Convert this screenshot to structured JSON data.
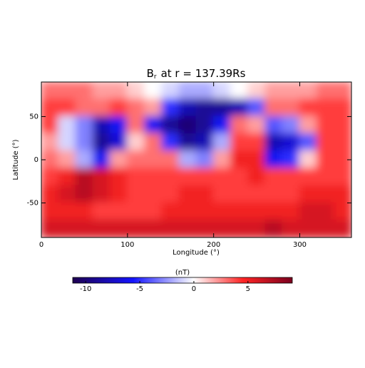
{
  "chart_data": {
    "type": "heatmap",
    "title": {
      "main": "B",
      "subscript": "r",
      "rest": "at r = 137.39Rs"
    },
    "x_label": "Longitude (°)",
    "y_label": "Latitude (°)",
    "x": [
      10,
      30,
      50,
      70,
      90,
      110,
      130,
      150,
      170,
      190,
      210,
      230,
      250,
      270,
      290,
      310,
      330,
      350
    ],
    "y": [
      80,
      60,
      40,
      20,
      0,
      -20,
      -40,
      -60,
      -80
    ],
    "z": [
      [
        3,
        3,
        3,
        2,
        2,
        1,
        0,
        -1,
        -2,
        -2,
        -1,
        0,
        1,
        2,
        2,
        2,
        3,
        3
      ],
      [
        4,
        4,
        3,
        3,
        4,
        3,
        2,
        -5,
        -8,
        -9,
        -9,
        -8,
        -4,
        3,
        3,
        4,
        4,
        4
      ],
      [
        4,
        -1,
        -3,
        -8,
        -6,
        3,
        -6,
        -9,
        -10,
        -9,
        -6,
        3,
        2,
        -4,
        -3,
        2,
        4,
        4
      ],
      [
        2,
        -1,
        -3,
        -9,
        -7,
        1,
        3,
        -5,
        -9,
        -8,
        -2,
        4,
        4,
        -8,
        -7,
        -4,
        4,
        4
      ],
      [
        3,
        2,
        -2,
        -6,
        2,
        3,
        3,
        3,
        -2,
        -3,
        2,
        5,
        5,
        -6,
        -5,
        1,
        4,
        4
      ],
      [
        4,
        5,
        7,
        6,
        5,
        4,
        4,
        4,
        4,
        4,
        4,
        4,
        5,
        4,
        4,
        4,
        4,
        4
      ],
      [
        5,
        6,
        7,
        6,
        5,
        4,
        4,
        4,
        5,
        5,
        4,
        4,
        4,
        4,
        4,
        5,
        5,
        5
      ],
      [
        5,
        5,
        5,
        4,
        4,
        4,
        4,
        5,
        5,
        5,
        5,
        5,
        5,
        5,
        5,
        6,
        6,
        5
      ],
      [
        6,
        6,
        6,
        6,
        6,
        6,
        6,
        6,
        6,
        6,
        6,
        6,
        6,
        7,
        6,
        6,
        6,
        6
      ]
    ],
    "xlim": [
      0,
      360
    ],
    "xticks": [
      0,
      100,
      200,
      300
    ],
    "ylim": [
      -90,
      90
    ],
    "yticks": [
      -50,
      0,
      50
    ],
    "colorbar_label": "(nT)",
    "clim": [
      -11.2,
      9.1
    ],
    "cticks": [
      -10,
      -5,
      0,
      5
    ],
    "colormap": {
      "negative": [
        "#ffffff",
        "#1414ff",
        "#1e0050"
      ],
      "positive": [
        "#ffffff",
        "#ff2424",
        "#7a001e"
      ]
    }
  }
}
